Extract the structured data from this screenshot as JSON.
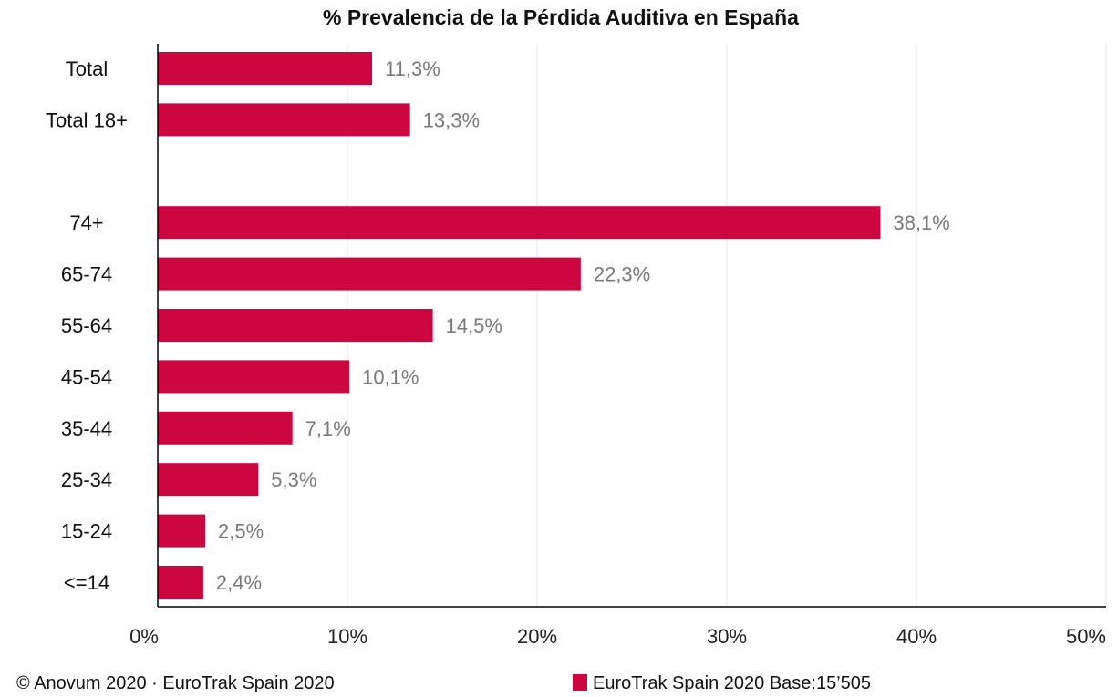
{
  "chart_data": {
    "type": "bar",
    "orientation": "horizontal",
    "title": "% Prevalencia de la Pérdida Auditiva en España",
    "xlabel": "",
    "ylabel": "",
    "xlim": [
      0,
      50
    ],
    "x_ticks": [
      0,
      10,
      20,
      30,
      40,
      50
    ],
    "x_tick_labels": [
      "0%",
      "10%",
      "20%",
      "30%",
      "40%",
      "50%"
    ],
    "grid": true,
    "categories": [
      "Total",
      "Total 18+",
      "",
      "74+",
      "65-74",
      "55-64",
      "45-54",
      "35-44",
      "25-34",
      "15-24",
      "<=14"
    ],
    "values": [
      11.3,
      13.3,
      null,
      38.1,
      22.3,
      14.5,
      10.1,
      7.1,
      5.3,
      2.5,
      2.4
    ],
    "value_labels": [
      "11,3%",
      "13,3%",
      "",
      "38,1%",
      "22,3%",
      "14,5%",
      "10,1%",
      "7,1%",
      "5,3%",
      "2,5%",
      "2,4%"
    ],
    "series": [
      {
        "name": "EuroTrak Spain 2020 Base:15’505",
        "color": "#cc063e"
      }
    ],
    "legend": {
      "label": "EuroTrak Spain 2020 Base:15’505",
      "placement": "bottom-center"
    },
    "source": "© Anovum 2020 · EuroTrak Spain 2020"
  },
  "colors": {
    "bar": "#cc063e",
    "value_text": "#7a7a7a",
    "grid": "#e6e6e6",
    "axis": "#000000"
  }
}
